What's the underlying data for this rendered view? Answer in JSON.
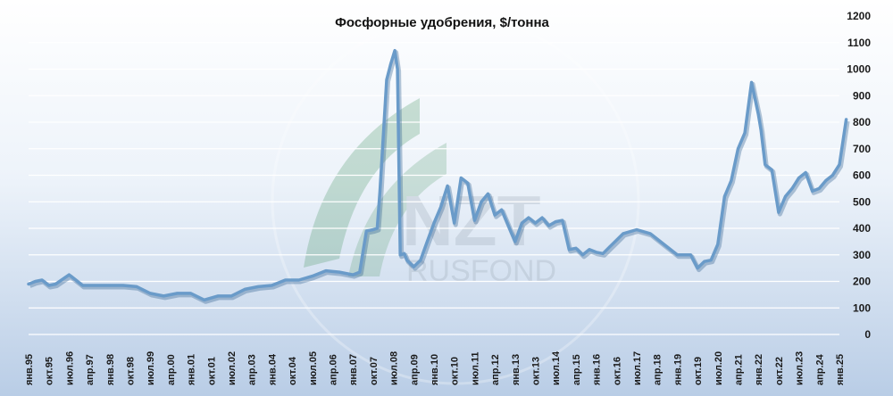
{
  "chart_data": {
    "type": "line",
    "title": "Фосфорные удобрения, $/тонна",
    "xlabel": "",
    "ylabel": "",
    "ylim": [
      0,
      1200
    ],
    "y_ticks": [
      0,
      100,
      200,
      300,
      400,
      500,
      600,
      700,
      800,
      900,
      1000,
      1100,
      1200
    ],
    "y_axis_side": "right",
    "grid": "horizontal",
    "line_color": "#6a9bc9",
    "x_tick_labels": [
      "янв.95",
      "окт.95",
      "июл.96",
      "апр.97",
      "янв.98",
      "окт.98",
      "июл.99",
      "апр.00",
      "янв.01",
      "окт.01",
      "июл.02",
      "апр.03",
      "янв.04",
      "окт.04",
      "июл.05",
      "апр.06",
      "янв.07",
      "окт.07",
      "июл.08",
      "апр.09",
      "янв.10",
      "окт.10",
      "июл.11",
      "апр.12",
      "янв.13",
      "окт.13",
      "июл.14",
      "апр.15",
      "янв.16",
      "окт.16",
      "июл.17",
      "апр.18",
      "янв.19",
      "окт.19",
      "июл.20",
      "апр.21",
      "янв.22",
      "окт.22",
      "июл.23",
      "апр.24",
      "янв.25"
    ],
    "x": [
      1995.0,
      1995.25,
      1995.5,
      1995.75,
      1996.0,
      1996.5,
      1997.0,
      1998.0,
      1998.5,
      1999.0,
      1999.5,
      2000.0,
      2000.5,
      2001.0,
      2001.5,
      2002.0,
      2002.5,
      2003.0,
      2003.5,
      2004.0,
      2004.5,
      2005.0,
      2005.5,
      2006.0,
      2006.5,
      2007.0,
      2007.25,
      2007.5,
      2007.75,
      2007.9,
      2008.0,
      2008.25,
      2008.4,
      2008.55,
      2008.65,
      2008.75,
      2008.9,
      2009.0,
      2009.25,
      2009.5,
      2009.75,
      2010.0,
      2010.25,
      2010.5,
      2010.75,
      2011.0,
      2011.25,
      2011.5,
      2011.75,
      2012.0,
      2012.25,
      2012.5,
      2012.75,
      2013.0,
      2013.25,
      2013.5,
      2013.75,
      2014.0,
      2014.25,
      2014.5,
      2014.75,
      2015.0,
      2015.25,
      2015.5,
      2015.75,
      2016.0,
      2016.25,
      2016.5,
      2016.75,
      2017.0,
      2017.5,
      2018.0,
      2018.5,
      2018.75,
      2019.0,
      2019.5,
      2019.75,
      2020.0,
      2020.25,
      2020.5,
      2020.75,
      2021.0,
      2021.25,
      2021.5,
      2021.75,
      2022.0,
      2022.1,
      2022.25,
      2022.5,
      2022.75,
      2023.0,
      2023.25,
      2023.5,
      2023.75,
      2024.0,
      2024.25,
      2024.5,
      2024.75,
      2025.0,
      2025.25
    ],
    "series": [
      {
        "values": [
          190,
          200,
          205,
          185,
          190,
          225,
          185,
          185,
          185,
          180,
          155,
          145,
          155,
          155,
          130,
          145,
          145,
          170,
          180,
          185,
          205,
          205,
          220,
          240,
          235,
          225,
          235,
          390,
          395,
          400,
          540,
          960,
          1020,
          1070,
          1000,
          300,
          305,
          280,
          255,
          280,
          350,
          420,
          480,
          560,
          420,
          590,
          570,
          430,
          500,
          530,
          450,
          470,
          410,
          350,
          420,
          440,
          420,
          440,
          410,
          425,
          430,
          320,
          325,
          300,
          320,
          310,
          305,
          330,
          355,
          380,
          395,
          380,
          340,
          320,
          300,
          300,
          250,
          275,
          280,
          340,
          520,
          580,
          700,
          760,
          950,
          830,
          770,
          640,
          620,
          460,
          520,
          550,
          590,
          610,
          540,
          550,
          580,
          600,
          640,
          810
        ]
      }
    ]
  }
}
